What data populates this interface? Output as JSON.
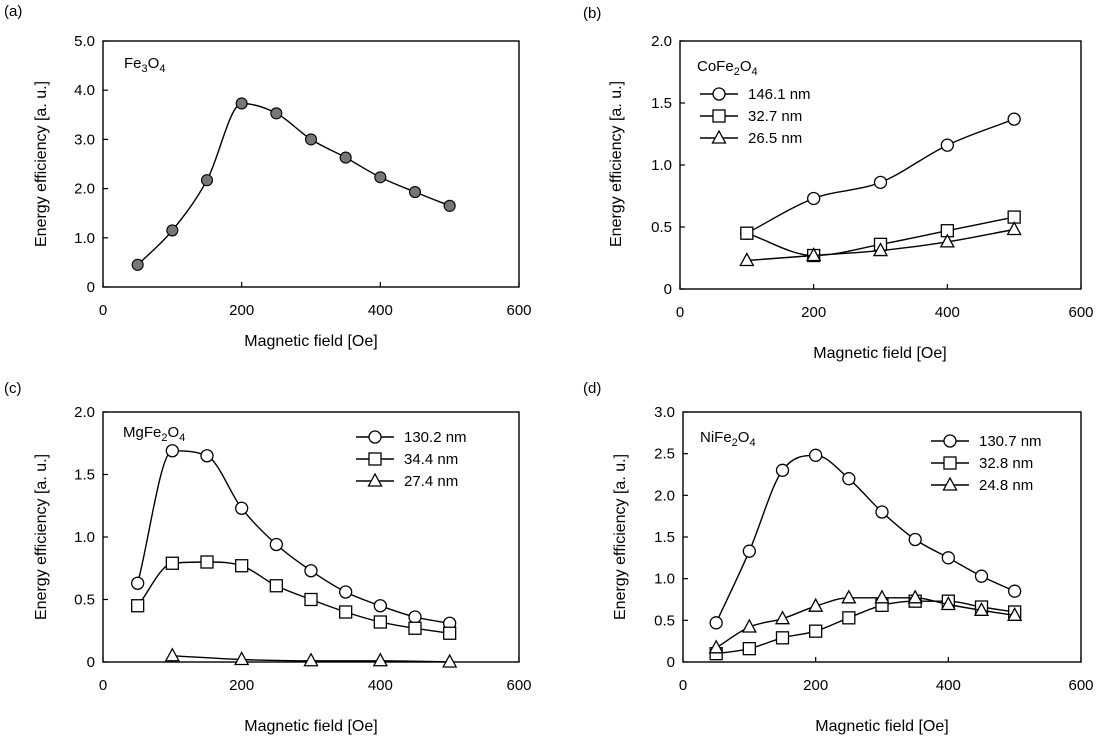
{
  "chart_data": [
    {
      "type": "line",
      "panel_label": "(a)",
      "title_parts": {
        "el1": "Fe",
        "sub1": "3",
        "el2": "O",
        "sub2": "4"
      },
      "xlabel": "Magnetic field [Oe]",
      "ylabel": "Energy efficiency [a. u.]",
      "xlim": [
        0,
        600
      ],
      "ylim": [
        0,
        5
      ],
      "xticks": [
        "0",
        "200",
        "400",
        "600"
      ],
      "yticks": [
        "0",
        "1.0",
        "2.0",
        "3.0",
        "4.0",
        "5.0"
      ],
      "grid": false,
      "legend_position": "none",
      "series": [
        {
          "name": "",
          "marker": "filled-circle",
          "x": [
            50,
            100,
            150,
            200,
            250,
            300,
            350,
            400,
            450,
            500
          ],
          "y": [
            0.45,
            1.15,
            2.17,
            3.73,
            3.53,
            3.0,
            2.63,
            2.23,
            1.93,
            1.65
          ]
        }
      ]
    },
    {
      "type": "line",
      "panel_label": "(b)",
      "title_parts": {
        "el1": "CoFe",
        "sub1": "2",
        "el2": "O",
        "sub2": "4"
      },
      "xlabel": "Magnetic field [Oe]",
      "ylabel": "Energy efficiency [a. u.]",
      "xlim": [
        0,
        600
      ],
      "ylim": [
        0,
        2
      ],
      "xticks": [
        "0",
        "200",
        "400",
        "600"
      ],
      "yticks": [
        "0",
        "0.5",
        "1.0",
        "1.5",
        "2.0"
      ],
      "grid": false,
      "legend_position": "top-left",
      "series": [
        {
          "name": "146.1 nm",
          "marker": "circle",
          "x": [
            100,
            200,
            300,
            400,
            500
          ],
          "y": [
            0.45,
            0.73,
            0.86,
            1.16,
            1.37
          ]
        },
        {
          "name": "32.7 nm",
          "marker": "square",
          "x": [
            100,
            200,
            300,
            400,
            500
          ],
          "y": [
            0.45,
            0.27,
            0.36,
            0.47,
            0.58
          ]
        },
        {
          "name": "26.5 nm",
          "marker": "triangle",
          "x": [
            100,
            200,
            300,
            400,
            500
          ],
          "y": [
            0.23,
            0.27,
            0.31,
            0.38,
            0.48
          ]
        }
      ]
    },
    {
      "type": "line",
      "panel_label": "(c)",
      "title_parts": {
        "el1": "MgFe",
        "sub1": "2",
        "el2": "O",
        "sub2": "4"
      },
      "xlabel": "Magnetic field [Oe]",
      "ylabel": "Energy efficiency [a. u.]",
      "xlim": [
        0,
        600
      ],
      "ylim": [
        0,
        2
      ],
      "xticks": [
        "0",
        "200",
        "400",
        "600"
      ],
      "yticks": [
        "0",
        "0.5",
        "1.0",
        "1.5",
        "2.0"
      ],
      "grid": false,
      "legend_position": "top-right",
      "series": [
        {
          "name": "130.2 nm",
          "marker": "circle",
          "x": [
            50,
            100,
            150,
            200,
            250,
            300,
            350,
            400,
            450,
            500
          ],
          "y": [
            0.63,
            1.69,
            1.65,
            1.23,
            0.94,
            0.73,
            0.56,
            0.45,
            0.36,
            0.31
          ]
        },
        {
          "name": "34.4 nm",
          "marker": "square",
          "x": [
            50,
            100,
            150,
            200,
            250,
            300,
            350,
            400,
            450,
            500
          ],
          "y": [
            0.45,
            0.79,
            0.8,
            0.77,
            0.61,
            0.5,
            0.4,
            0.32,
            0.27,
            0.23
          ]
        },
        {
          "name": "27.4 nm",
          "marker": "triangle",
          "x": [
            100,
            200,
            300,
            400,
            500
          ],
          "y": [
            0.05,
            0.02,
            0.01,
            0.01,
            0.0
          ]
        }
      ]
    },
    {
      "type": "line",
      "panel_label": "(d)",
      "title_parts": {
        "el1": "NiFe",
        "sub1": "2",
        "el2": "O",
        "sub2": "4"
      },
      "xlabel": "Magnetic field [Oe]",
      "ylabel": "Energy efficiency [a. u.]",
      "xlim": [
        0,
        600
      ],
      "ylim": [
        0,
        3
      ],
      "xticks": [
        "0",
        "200",
        "400",
        "600"
      ],
      "yticks": [
        "0",
        "0.5",
        "1.0",
        "1.5",
        "2.0",
        "2.5",
        "3.0"
      ],
      "grid": false,
      "legend_position": "top-right",
      "series": [
        {
          "name": "130.7 nm",
          "marker": "circle",
          "x": [
            50,
            100,
            150,
            200,
            250,
            300,
            350,
            400,
            450,
            500
          ],
          "y": [
            0.47,
            1.33,
            2.3,
            2.48,
            2.2,
            1.8,
            1.47,
            1.25,
            1.03,
            0.85
          ]
        },
        {
          "name": "32.8 nm",
          "marker": "square",
          "x": [
            50,
            100,
            150,
            200,
            250,
            300,
            350,
            400,
            450,
            500
          ],
          "y": [
            0.1,
            0.16,
            0.29,
            0.37,
            0.53,
            0.68,
            0.73,
            0.73,
            0.66,
            0.6
          ]
        },
        {
          "name": "24.8 nm",
          "marker": "triangle",
          "x": [
            50,
            100,
            150,
            200,
            250,
            300,
            350,
            400,
            450,
            500
          ],
          "y": [
            0.17,
            0.42,
            0.52,
            0.67,
            0.77,
            0.77,
            0.77,
            0.69,
            0.62,
            0.56
          ]
        }
      ]
    }
  ]
}
